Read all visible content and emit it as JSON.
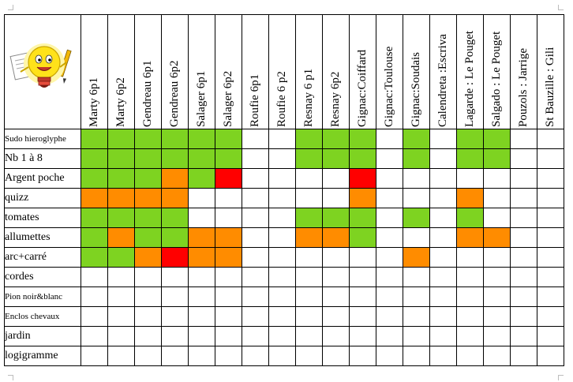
{
  "columns": [
    "Marty 6p1",
    "Marty 6p2",
    "Gendreau 6p1",
    "Gendreau 6p2",
    "Salager  6p1",
    "Salager  6p2",
    "Roufie 6p1",
    "Roufie 6 p2",
    "Resnay 6 p1",
    "Resnay 6p2",
    "Gignac:Coiffard",
    "Gignac:Toulouse",
    "Gignac:Soudais",
    "Calendreta :Escriva",
    "Lagarde : Le Pouget",
    "Salgado : Le Pouget",
    "Pouzols : Jarrige",
    "St Bauzille : Gili"
  ],
  "rows": [
    {
      "label": "Sudo hieroglyphe",
      "small": true,
      "cells": [
        "g",
        "g",
        "g",
        "g",
        "g",
        "g",
        "w",
        "w",
        "g",
        "g",
        "g",
        "w",
        "g",
        "w",
        "g",
        "g",
        "w",
        "w"
      ]
    },
    {
      "label": "Nb 1 à 8",
      "small": false,
      "cells": [
        "g",
        "g",
        "g",
        "g",
        "g",
        "g",
        "w",
        "w",
        "g",
        "g",
        "g",
        "w",
        "g",
        "w",
        "g",
        "g",
        "w",
        "w"
      ]
    },
    {
      "label": "Argent poche",
      "small": false,
      "cells": [
        "g",
        "g",
        "g",
        "o",
        "g",
        "r",
        "w",
        "w",
        "w",
        "w",
        "r",
        "w",
        "w",
        "w",
        "w",
        "w",
        "w",
        "w"
      ]
    },
    {
      "label": "quizz",
      "small": false,
      "cells": [
        "o",
        "o",
        "o",
        "o",
        "w",
        "w",
        "w",
        "w",
        "w",
        "w",
        "o",
        "w",
        "w",
        "w",
        "o",
        "w",
        "w",
        "w"
      ]
    },
    {
      "label": "tomates",
      "small": false,
      "cells": [
        "g",
        "g",
        "g",
        "g",
        "w",
        "w",
        "w",
        "w",
        "g",
        "g",
        "g",
        "w",
        "g",
        "w",
        "g",
        "w",
        "w",
        "w"
      ]
    },
    {
      "label": "allumettes",
      "small": false,
      "cells": [
        "g",
        "o",
        "g",
        "g",
        "o",
        "o",
        "w",
        "w",
        "o",
        "o",
        "g",
        "w",
        "w",
        "w",
        "o",
        "o",
        "w",
        "w"
      ]
    },
    {
      "label": "arc+carré",
      "small": false,
      "cells": [
        "g",
        "g",
        "o",
        "r",
        "o",
        "o",
        "w",
        "w",
        "w",
        "w",
        "w",
        "w",
        "o",
        "w",
        "w",
        "w",
        "w",
        "w"
      ]
    },
    {
      "label": "cordes",
      "small": false,
      "cells": [
        "w",
        "w",
        "w",
        "w",
        "w",
        "w",
        "w",
        "w",
        "w",
        "w",
        "w",
        "w",
        "w",
        "w",
        "w",
        "w",
        "w",
        "w"
      ]
    },
    {
      "label": "Pion noir&blanc",
      "small": true,
      "cells": [
        "w",
        "w",
        "w",
        "w",
        "w",
        "w",
        "w",
        "w",
        "w",
        "w",
        "w",
        "w",
        "w",
        "w",
        "w",
        "w",
        "w",
        "w"
      ]
    },
    {
      "label": "Enclos chevaux",
      "small": true,
      "cells": [
        "w",
        "w",
        "w",
        "w",
        "w",
        "w",
        "w",
        "w",
        "w",
        "w",
        "w",
        "w",
        "w",
        "w",
        "w",
        "w",
        "w",
        "w"
      ]
    },
    {
      "label": "jardin",
      "small": false,
      "cells": [
        "w",
        "w",
        "w",
        "w",
        "w",
        "w",
        "w",
        "w",
        "w",
        "w",
        "w",
        "w",
        "w",
        "w",
        "w",
        "w",
        "w",
        "w"
      ]
    },
    {
      "label": "logigramme",
      "small": false,
      "cells": [
        "w",
        "w",
        "w",
        "w",
        "w",
        "w",
        "w",
        "w",
        "w",
        "w",
        "w",
        "w",
        "w",
        "w",
        "w",
        "w",
        "w",
        "w"
      ]
    }
  ],
  "legend_colors": {
    "green": "#7ed321",
    "orange": "#ff8c00",
    "red": "#ff0000",
    "white": "#ffffff"
  },
  "logo": {
    "icon": "lightbulb-mascot-icon"
  }
}
